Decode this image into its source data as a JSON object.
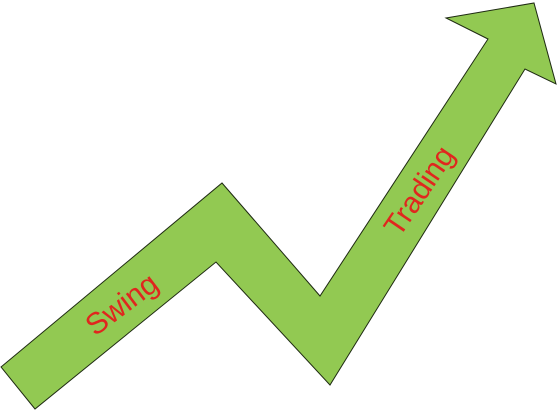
{
  "diagram": {
    "labels": {
      "first": "Swing",
      "second": "Trading"
    },
    "colors": {
      "arrow_fill": "#92C952",
      "arrow_stroke": "#1E2A12",
      "label_text": "#E0261E",
      "background": "#FFFFFF"
    },
    "icon": "zigzag-up-arrow"
  }
}
